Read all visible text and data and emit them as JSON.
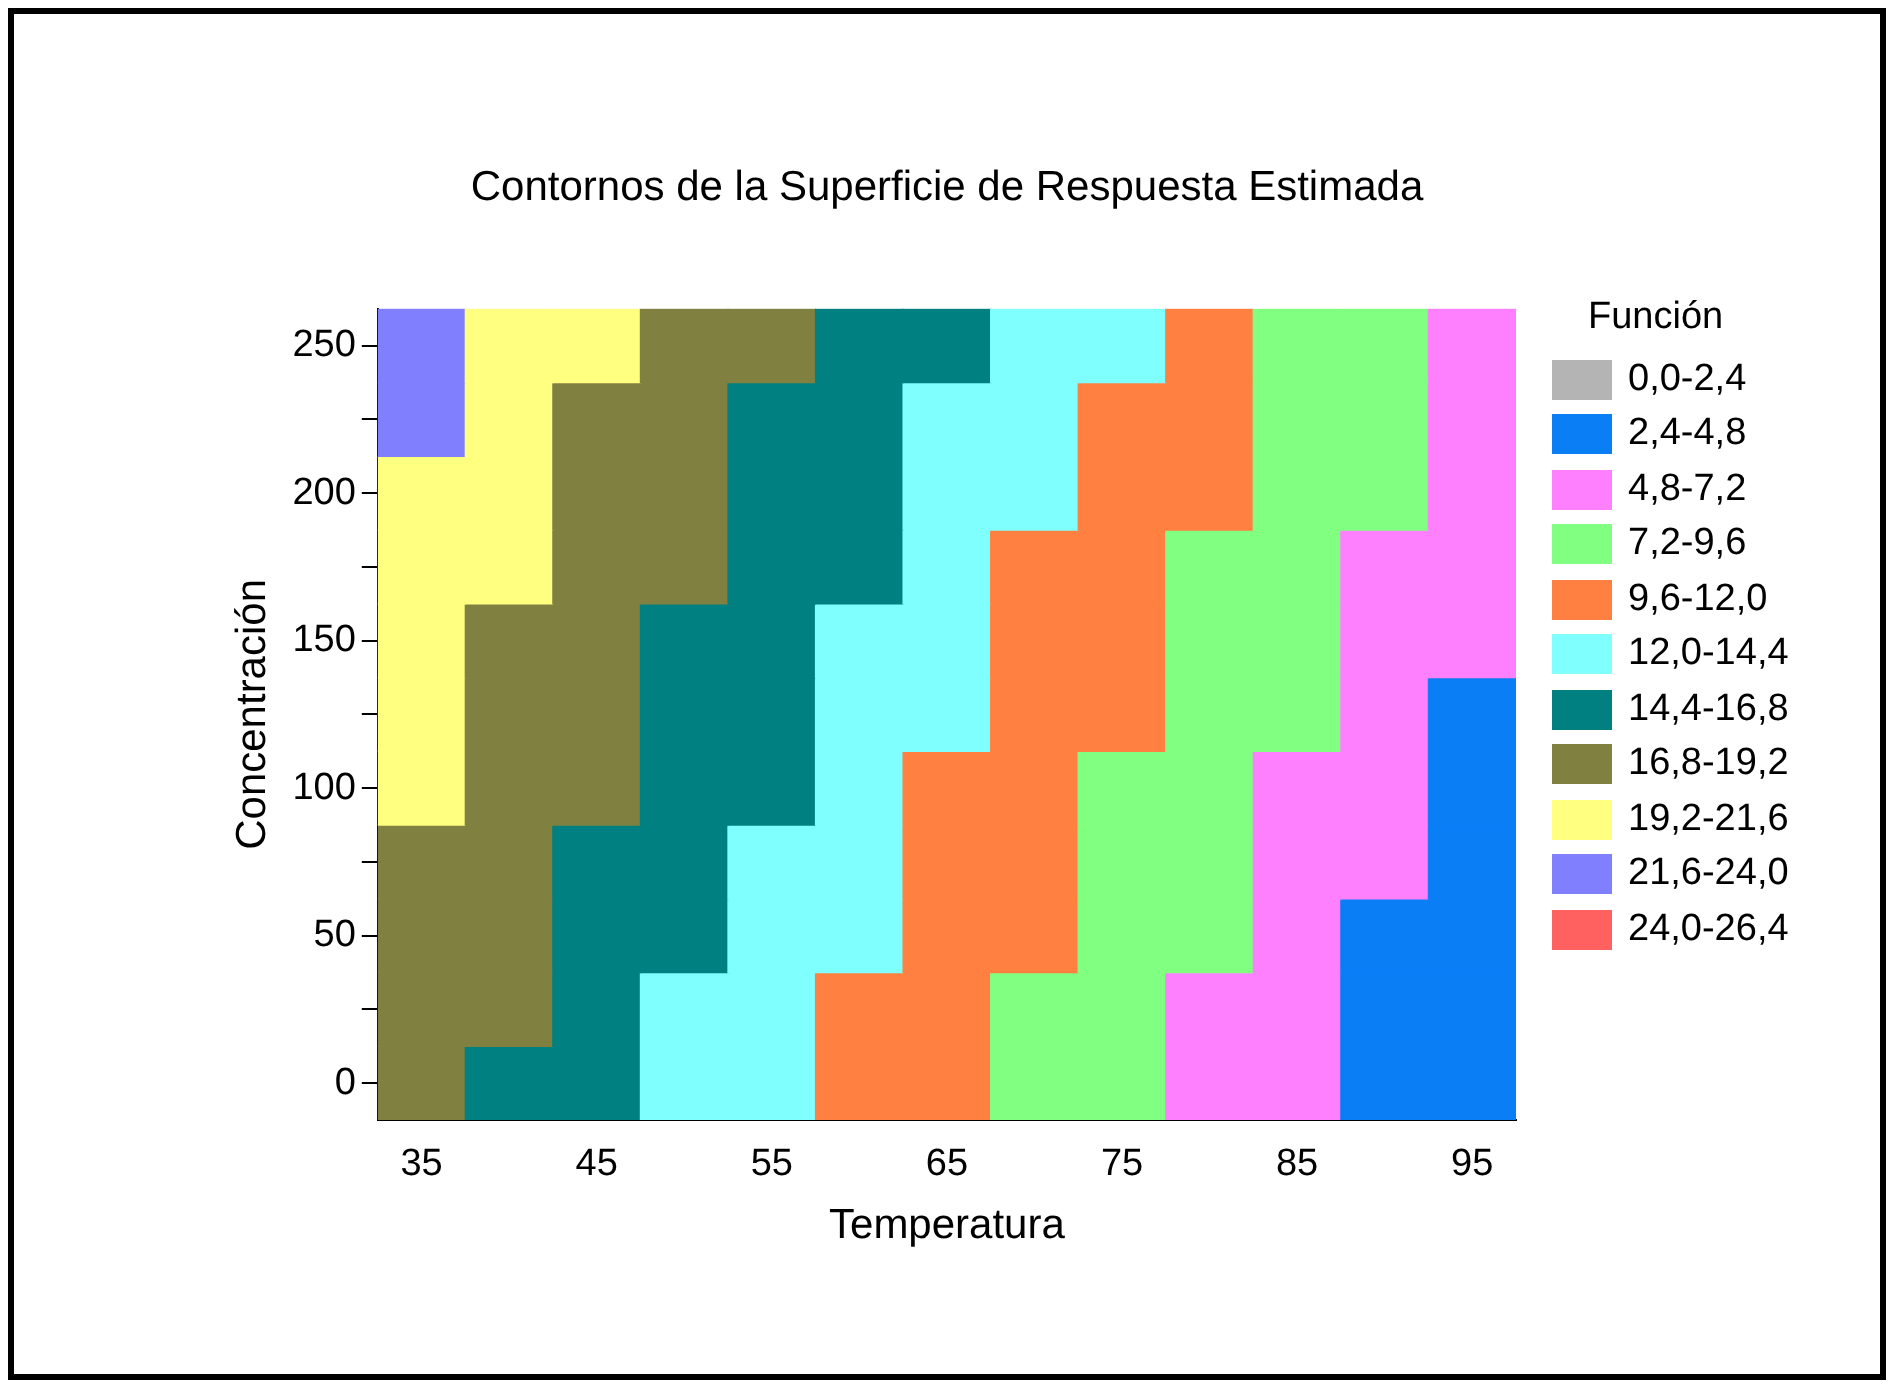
{
  "chart_data": {
    "type": "heatmap",
    "title": "Contornos de la Superficie de Respuesta Estimada",
    "xlabel": "Temperatura",
    "ylabel": "Concentración",
    "legend_title": "Función",
    "categories": [
      "35",
      null,
      "45",
      null,
      "55",
      null,
      "65",
      null,
      "75",
      null,
      "85",
      null,
      "95"
    ],
    "y_categories": [
      "250",
      null,
      "200",
      null,
      "150",
      null,
      "100",
      null,
      "50",
      null,
      "0"
    ],
    "cells": [
      [
        22.8,
        20.4,
        20.4,
        18.0,
        18.0,
        15.6,
        15.6,
        13.2,
        13.2,
        10.8,
        8.4,
        8.4,
        6.0
      ],
      [
        22.8,
        20.4,
        18.0,
        18.0,
        15.6,
        15.6,
        13.2,
        13.2,
        10.8,
        10.8,
        8.4,
        8.4,
        6.0
      ],
      [
        20.4,
        20.4,
        18.0,
        18.0,
        15.6,
        15.6,
        13.2,
        13.2,
        10.8,
        10.8,
        8.4,
        8.4,
        6.0
      ],
      [
        20.4,
        20.4,
        18.0,
        18.0,
        15.6,
        15.6,
        13.2,
        10.8,
        10.8,
        8.4,
        8.4,
        6.0,
        6.0
      ],
      [
        20.4,
        18.0,
        18.0,
        15.6,
        15.6,
        13.2,
        13.2,
        10.8,
        10.8,
        8.4,
        8.4,
        6.0,
        6.0
      ],
      [
        20.4,
        18.0,
        18.0,
        15.6,
        15.6,
        13.2,
        13.2,
        10.8,
        10.8,
        8.4,
        8.4,
        6.0,
        3.6
      ],
      [
        20.4,
        18.0,
        18.0,
        15.6,
        15.6,
        13.2,
        10.8,
        10.8,
        8.4,
        8.4,
        6.0,
        6.0,
        3.6
      ],
      [
        18.0,
        18.0,
        15.6,
        15.6,
        13.2,
        13.2,
        10.8,
        10.8,
        8.4,
        8.4,
        6.0,
        6.0,
        3.6
      ],
      [
        18.0,
        18.0,
        15.6,
        15.6,
        13.2,
        13.2,
        10.8,
        10.8,
        8.4,
        8.4,
        6.0,
        3.6,
        3.6
      ],
      [
        18.0,
        18.0,
        15.6,
        13.2,
        13.2,
        10.8,
        10.8,
        8.4,
        8.4,
        6.0,
        6.0,
        3.6,
        3.6
      ],
      [
        18.0,
        15.6,
        15.6,
        13.2,
        13.2,
        10.8,
        10.8,
        8.4,
        8.4,
        6.0,
        6.0,
        3.6,
        3.6
      ]
    ],
    "cticks": [
      {
        "value": 1.2,
        "label": "0,0-2,4"
      },
      {
        "value": 3.6,
        "label": "2,4-4,8"
      },
      {
        "value": 6.0,
        "label": "4,8-7,2"
      },
      {
        "value": 8.4,
        "label": "7,2-9,6"
      },
      {
        "value": 10.8,
        "label": "9,6-12,0"
      },
      {
        "value": 13.2,
        "label": "12,0-14,4"
      },
      {
        "value": 15.6,
        "label": "14,4-16,8"
      },
      {
        "value": 18.0,
        "label": "16,8-19,2"
      },
      {
        "value": 20.4,
        "label": "19,2-21,6"
      },
      {
        "value": 22.8,
        "label": "21,6-24,0"
      },
      {
        "value": 25.2,
        "label": "24,0-26,4"
      }
    ],
    "colors": [
      "#b4b4b4",
      "#0a7ef5",
      "#ff80ff",
      "#80ff80",
      "#ff8040",
      "#80ffff",
      "#008080",
      "#808040",
      "#ffff80",
      "#8080ff",
      "#ff6060"
    ]
  }
}
